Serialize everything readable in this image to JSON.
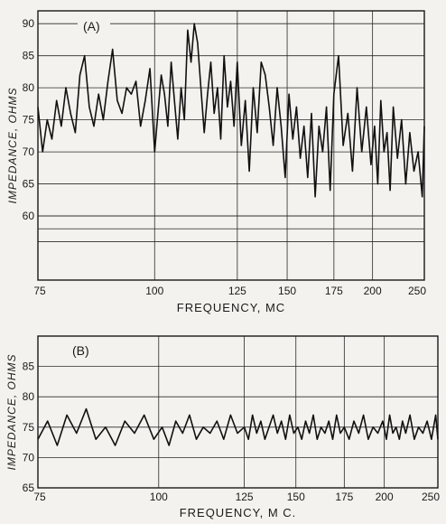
{
  "chart_data": [
    {
      "type": "line",
      "panel_label": "(A)",
      "xlabel": "FREQUENCY,  MC",
      "ylabel": "IMPEDANCE, OHMS",
      "x_ticks": [
        75,
        100,
        125,
        150,
        175,
        200,
        250
      ],
      "y_ticks": [
        60,
        65,
        70,
        75,
        80,
        85,
        90
      ],
      "ylim": [
        50,
        92
      ],
      "grid": true,
      "series": [
        {
          "x": [
            75,
            76,
            77,
            78,
            79,
            80,
            81,
            82,
            83,
            84,
            85,
            86,
            87,
            88,
            89,
            90,
            91,
            92,
            93,
            94,
            95,
            96,
            97,
            98,
            99,
            100,
            101,
            102,
            103,
            104,
            105,
            106,
            107,
            108,
            109,
            110,
            111,
            112,
            113,
            114,
            115,
            116,
            117,
            118,
            119,
            120,
            121,
            122,
            123,
            124,
            125,
            127,
            129,
            131,
            133,
            135,
            137,
            139,
            141,
            143,
            145,
            147,
            149,
            151,
            153,
            155,
            157,
            159,
            161,
            163,
            165,
            167,
            169,
            171,
            173,
            175,
            178,
            181,
            184,
            187,
            190,
            193,
            196,
            199,
            202,
            205,
            208,
            211,
            214,
            217,
            220,
            224,
            228,
            232,
            236,
            240,
            244,
            248,
            250
          ],
          "y": [
            77,
            70,
            75,
            72,
            78,
            74,
            80,
            76,
            73,
            82,
            85,
            77,
            74,
            79,
            75,
            81,
            86,
            78,
            76,
            80,
            79,
            81,
            74,
            78,
            83,
            70,
            76,
            82,
            79,
            74,
            84,
            78,
            72,
            80,
            75,
            89,
            84,
            90,
            87,
            80,
            73,
            79,
            84,
            76,
            80,
            72,
            85,
            77,
            81,
            74,
            84,
            71,
            78,
            67,
            80,
            73,
            84,
            82,
            77,
            71,
            80,
            74,
            66,
            79,
            72,
            77,
            69,
            74,
            66,
            76,
            63,
            74,
            70,
            77,
            64,
            79,
            85,
            71,
            76,
            67,
            80,
            70,
            77,
            68,
            74,
            65,
            78,
            70,
            73,
            64,
            77,
            69,
            75,
            65,
            73,
            67,
            70,
            63,
            74
          ]
        }
      ]
    },
    {
      "type": "line",
      "panel_label": "(B)",
      "xlabel": "FREQUENCY,  M C.",
      "ylabel": "IMPEDANCE, OHMS",
      "x_ticks": [
        75,
        100,
        125,
        150,
        175,
        200,
        250
      ],
      "y_ticks": [
        65,
        70,
        75,
        80,
        85
      ],
      "ylim": [
        65,
        90
      ],
      "grid": true,
      "series": [
        {
          "x": [
            75,
            77,
            79,
            81,
            83,
            85,
            87,
            89,
            91,
            93,
            95,
            97,
            99,
            101,
            103,
            105,
            107,
            109,
            111,
            113,
            115,
            117,
            119,
            121,
            123,
            125,
            127,
            129,
            131,
            133,
            135,
            137,
            139,
            141,
            143,
            145,
            147,
            149,
            151,
            153,
            155,
            157,
            159,
            161,
            163,
            165,
            167,
            169,
            171,
            173,
            175,
            178,
            181,
            184,
            187,
            190,
            193,
            196,
            199,
            202,
            205,
            208,
            211,
            214,
            217,
            220,
            224,
            228,
            232,
            236,
            240,
            244,
            248,
            250
          ],
          "y": [
            73,
            76,
            72,
            77,
            74,
            78,
            73,
            75,
            72,
            76,
            74,
            77,
            73,
            75,
            72,
            76,
            74,
            77,
            73,
            75,
            74,
            76,
            73,
            77,
            74,
            75,
            73,
            77,
            74,
            76,
            73,
            75,
            77,
            74,
            76,
            73,
            77,
            74,
            75,
            73,
            76,
            74,
            77,
            73,
            75,
            74,
            76,
            73,
            77,
            74,
            75,
            73,
            76,
            74,
            77,
            73,
            75,
            74,
            76,
            73,
            77,
            74,
            75,
            73,
            76,
            74,
            77,
            73,
            75,
            74,
            76,
            73,
            77,
            73
          ]
        }
      ]
    }
  ]
}
